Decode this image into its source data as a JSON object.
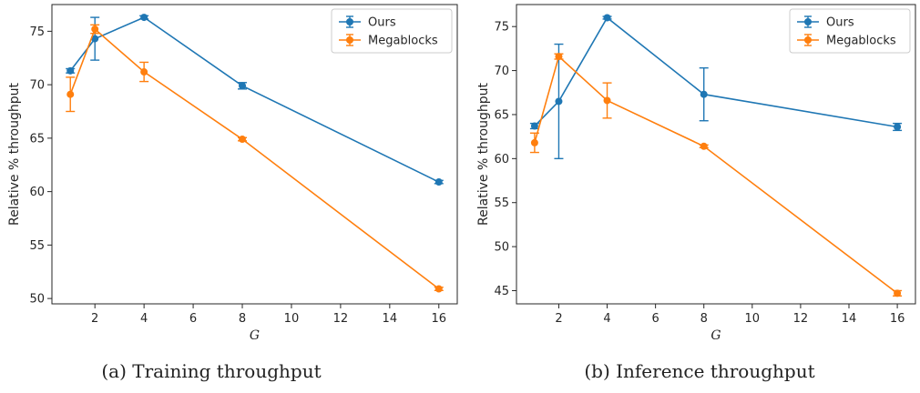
{
  "chart_data": [
    {
      "type": "line",
      "caption": "(a) Training throughput",
      "xlabel": "G",
      "ylabel": "Relative % throughput",
      "xlim": [
        0.25,
        16.75
      ],
      "ylim": [
        49.5,
        77.5
      ],
      "xticks": [
        2,
        4,
        6,
        8,
        10,
        12,
        14,
        16
      ],
      "yticks": [
        50,
        55,
        60,
        65,
        70,
        75
      ],
      "legend": "top-right",
      "series": [
        {
          "name": "Ours",
          "color": "#1f77b4",
          "x": [
            1,
            2,
            4,
            8,
            16
          ],
          "y": [
            71.3,
            74.3,
            76.3,
            69.9,
            60.9
          ],
          "err": [
            0.2,
            2.0,
            0.15,
            0.3,
            0.15
          ]
        },
        {
          "name": "Megablocks",
          "color": "#ff7f0e",
          "x": [
            1,
            2,
            4,
            8,
            16
          ],
          "y": [
            69.1,
            75.2,
            71.2,
            64.9,
            50.9
          ],
          "err": [
            1.6,
            0.4,
            0.9,
            0.15,
            0.15
          ]
        }
      ]
    },
    {
      "type": "line",
      "caption": "(b) Inference throughput",
      "xlabel": "G",
      "ylabel": "Relative % throughput",
      "xlim": [
        0.25,
        16.75
      ],
      "ylim": [
        43.5,
        77.5
      ],
      "xticks": [
        2,
        4,
        6,
        8,
        10,
        12,
        14,
        16
      ],
      "yticks": [
        45,
        50,
        55,
        60,
        65,
        70,
        75
      ],
      "legend": "top-right",
      "series": [
        {
          "name": "Ours",
          "color": "#1f77b4",
          "x": [
            1,
            2,
            4,
            8,
            16
          ],
          "y": [
            63.7,
            66.5,
            76.0,
            67.3,
            63.6
          ],
          "err": [
            0.3,
            6.5,
            0.15,
            3.0,
            0.4
          ]
        },
        {
          "name": "Megablocks",
          "color": "#ff7f0e",
          "x": [
            1,
            2,
            4,
            8,
            16
          ],
          "y": [
            61.8,
            71.6,
            66.6,
            61.4,
            44.7
          ],
          "err": [
            1.1,
            0.3,
            2.0,
            0.15,
            0.3
          ]
        }
      ]
    }
  ]
}
